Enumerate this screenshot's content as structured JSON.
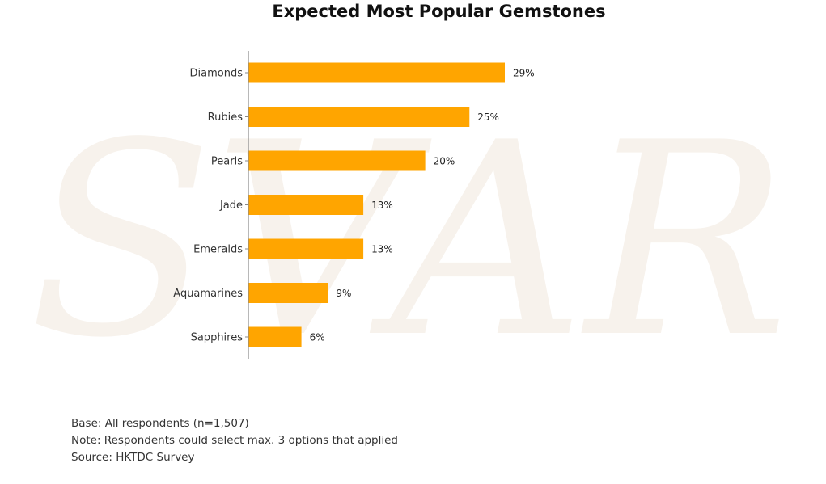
{
  "chart_data": {
    "type": "bar",
    "orientation": "horizontal",
    "title": "Expected Most Popular Gemstones",
    "categories": [
      "Diamonds",
      "Rubies",
      "Pearls",
      "Jade",
      "Emeralds",
      "Aquamarines",
      "Sapphires"
    ],
    "values": [
      29,
      25,
      20,
      13,
      13,
      9,
      6
    ],
    "value_labels": [
      "29%",
      "25%",
      "20%",
      "13%",
      "13%",
      "9%",
      "6%"
    ],
    "unit": "%",
    "xlim": [
      0,
      29
    ],
    "grid": false,
    "bar_color": "#FFA500"
  },
  "watermark": {
    "text": "SVAR",
    "color": "#F7F2EC"
  },
  "footnotes": {
    "base": "Base: All respondents (n=1,507)",
    "note": "Note: Respondents could select max. 3 options that applied",
    "source": "Source: HKTDC Survey"
  }
}
